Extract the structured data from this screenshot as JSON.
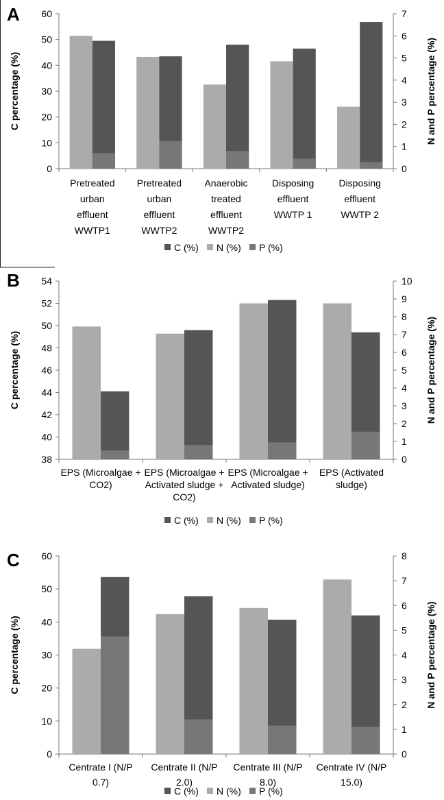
{
  "legend_labels": [
    "C (%)",
    "N (%)",
    "P (%)"
  ],
  "colors": {
    "C": "#555555",
    "N": "#ababab",
    "P": "#777777"
  },
  "chart_data": [
    {
      "panel_label": "A",
      "type": "bar",
      "ylabel": "C percentage (%)",
      "y2label": "N and P percentage (%)",
      "ylim": [
        0,
        60
      ],
      "y2lim": [
        0,
        7
      ],
      "yticks": [
        "0",
        "10",
        "20",
        "30",
        "40",
        "50",
        "60"
      ],
      "y2ticks": [
        "0",
        "1",
        "2",
        "3",
        "4",
        "5",
        "6",
        "7"
      ],
      "categories": [
        [
          "Pretreated",
          "urban",
          "effluent",
          "WWTP1"
        ],
        [
          "Pretreated",
          "urban",
          "effluent",
          "WWTP2"
        ],
        [
          "Anaerobic",
          "treated",
          "effluent",
          "WWTP2"
        ],
        [
          "Disposing",
          "effluent",
          "WWTP 1"
        ],
        [
          "Disposing",
          "effluent",
          "WWTP 2"
        ]
      ],
      "series": [
        {
          "name": "C (%)",
          "axis": "left",
          "values": [
            49.5,
            43.5,
            48,
            46.5,
            56.8
          ]
        },
        {
          "name": "N (%)",
          "axis": "right",
          "values": [
            6.0,
            5.05,
            3.8,
            4.85,
            2.8
          ]
        },
        {
          "name": "P (%)",
          "axis": "right",
          "values": [
            0.7,
            1.25,
            0.8,
            0.45,
            0.3
          ]
        }
      ],
      "legend_position": "bottom"
    },
    {
      "panel_label": "B",
      "type": "bar",
      "ylabel": "C percentage (%)",
      "y2label": "N and P percentage (%)",
      "ylim": [
        38,
        54
      ],
      "y2lim": [
        0,
        10
      ],
      "yticks": [
        "38",
        "40",
        "42",
        "44",
        "46",
        "48",
        "50",
        "52",
        "54"
      ],
      "y2ticks": [
        "0",
        "1",
        "2",
        "3",
        "4",
        "5",
        "6",
        "7",
        "8",
        "9",
        "10"
      ],
      "categories": [
        [
          "EPS (Microalgae +",
          "CO2)"
        ],
        [
          "EPS (Microalgae +",
          "Activated sludge +",
          "CO2)"
        ],
        [
          "EPS (Microalgae +",
          "Activated sludge)"
        ],
        [
          "EPS    (Activated",
          "sludge)"
        ]
      ],
      "series": [
        {
          "name": "C (%)",
          "axis": "left",
          "values": [
            44.1,
            49.6,
            52.3,
            49.4
          ]
        },
        {
          "name": "N (%)",
          "axis": "right",
          "values": [
            7.45,
            7.05,
            8.75,
            8.75
          ]
        },
        {
          "name": "P (%)",
          "axis": "right",
          "values": [
            0.5,
            0.8,
            0.95,
            1.55
          ]
        }
      ],
      "legend_position": "bottom"
    },
    {
      "panel_label": "C",
      "type": "bar",
      "ylabel": "C percentage (%)",
      "y2label": "N and P percentage (%)",
      "ylim": [
        0,
        60
      ],
      "y2lim": [
        0,
        8
      ],
      "yticks": [
        "0",
        "10",
        "20",
        "30",
        "40",
        "50",
        "60"
      ],
      "y2ticks": [
        "0",
        "1",
        "2",
        "3",
        "4",
        "5",
        "6",
        "7",
        "8"
      ],
      "categories": [
        [
          "Centrate I  (N/P",
          "0.7)"
        ],
        [
          "Centrate II (N/P",
          "2.0)"
        ],
        [
          "Centrate III (N/P",
          "8.0)"
        ],
        [
          "Centrate IV (N/P",
          "15.0)"
        ]
      ],
      "series": [
        {
          "name": "C (%)",
          "axis": "left",
          "values": [
            53.6,
            47.8,
            40.7,
            42
          ]
        },
        {
          "name": "N (%)",
          "axis": "right",
          "values": [
            4.25,
            5.65,
            5.9,
            7.05
          ]
        },
        {
          "name": "P (%)",
          "axis": "right",
          "values": [
            4.75,
            1.4,
            1.15,
            1.1
          ]
        }
      ],
      "legend_position": "bottom"
    }
  ]
}
